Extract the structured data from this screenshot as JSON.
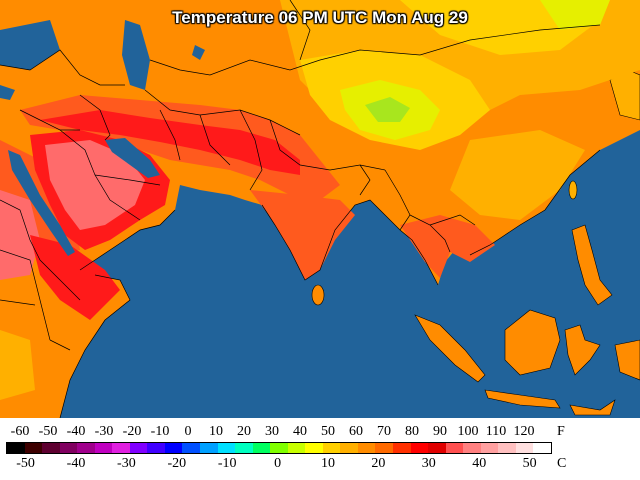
{
  "title": "Temperature 06 PM UTC Mon Aug 29",
  "colors": {
    "ocean": "#21639a",
    "hottest": "#ff6b6b",
    "very_hot": "#ff1a1a",
    "hot": "#ff5a1e",
    "warm": "#ff8c00",
    "mild": "#ffb000",
    "cool": "#ffd000",
    "cooler": "#e6ef00",
    "coolest": "#a8e61e",
    "border": "#000000"
  },
  "legend": {
    "fahrenheit_label": "F",
    "celsius_label": "C",
    "fahrenheit_ticks": [
      "-60",
      "-50",
      "-40",
      "-30",
      "-20",
      "-10",
      "0",
      "10",
      "20",
      "30",
      "40",
      "50",
      "60",
      "70",
      "80",
      "90",
      "100",
      "110",
      "120"
    ],
    "celsius_ticks": [
      "-50",
      "-40",
      "-30",
      "-20",
      "-10",
      "0",
      "10",
      "20",
      "30",
      "40",
      "50"
    ],
    "scale_colors": [
      "#000000",
      "#3d0000",
      "#5e0030",
      "#800060",
      "#a0008c",
      "#c000c0",
      "#e020e0",
      "#8000ff",
      "#4000ff",
      "#0000ff",
      "#0050ff",
      "#00a0ff",
      "#00e0ff",
      "#00ffc0",
      "#00ff60",
      "#80ff00",
      "#c8ff00",
      "#ffff00",
      "#ffd000",
      "#ffb000",
      "#ff8c00",
      "#ff6a00",
      "#ff3000",
      "#ff0000",
      "#e00000",
      "#ff5050",
      "#ff8080",
      "#ffa0a0",
      "#ffc0c0",
      "#ffe0e0",
      "#ffffff"
    ]
  }
}
